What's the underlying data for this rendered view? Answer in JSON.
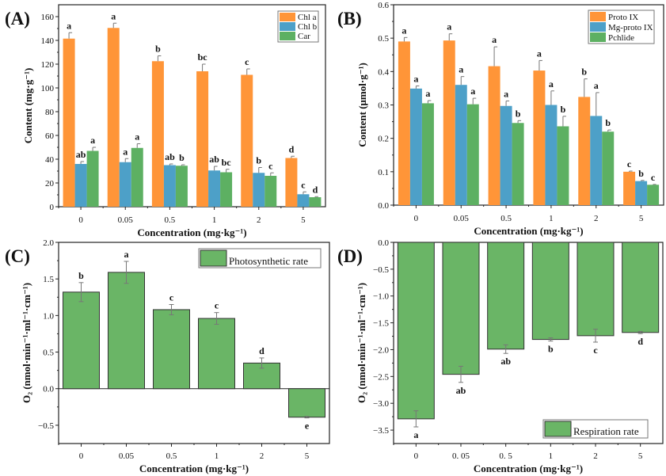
{
  "chart_data": [
    {
      "type": "bar",
      "panel_label": "(A)",
      "xlabel": "Concentration (mg·kg⁻¹)",
      "ylabel": "Content (mg·g⁻¹)",
      "categories": [
        "0",
        "0.05",
        "0.5",
        "1",
        "2",
        "5"
      ],
      "ylim": [
        0,
        170
      ],
      "yticks": [
        0,
        20,
        40,
        60,
        80,
        100,
        120,
        140,
        160
      ],
      "tick_decimals": 0,
      "legend_position": "top-right",
      "series": [
        {
          "name": "Chl a",
          "color": "#FF9538",
          "values": [
            141.5,
            150.5,
            122.5,
            114,
            111,
            41
          ],
          "errors": [
            5,
            4,
            4.5,
            6,
            5,
            1.5
          ],
          "letters": [
            "a",
            "a",
            "b",
            "bc",
            "c",
            "d"
          ]
        },
        {
          "name": "Chl b",
          "color": "#4DA0C8",
          "values": [
            36,
            37.5,
            35,
            30.5,
            28.5,
            10.5
          ],
          "errors": [
            2,
            3,
            1,
            3.5,
            4.5,
            2
          ],
          "letters": [
            "ab",
            "a",
            "ab",
            "ab",
            "b",
            "c"
          ]
        },
        {
          "name": "Car",
          "color": "#5DB062",
          "values": [
            47,
            49.5,
            34.5,
            29,
            26,
            8
          ],
          "errors": [
            3,
            3.5,
            0.8,
            2.5,
            2.5,
            0.5
          ],
          "letters": [
            "a",
            "a",
            "b",
            "bc",
            "c",
            "d"
          ]
        }
      ]
    },
    {
      "type": "bar",
      "panel_label": "(B)",
      "xlabel": "Concentration (mg·kg⁻¹)",
      "ylabel": "Content (μmol·g⁻¹)",
      "categories": [
        "0",
        "0.05",
        "0.5",
        "1",
        "2",
        "5"
      ],
      "ylim": [
        0,
        0.6
      ],
      "yticks": [
        0,
        0.1,
        0.2,
        0.3,
        0.4,
        0.5,
        0.6
      ],
      "tick_decimals": 1,
      "legend_position": "top-right",
      "series": [
        {
          "name": "Proto IX",
          "color": "#FF9538",
          "values": [
            0.49,
            0.493,
            0.416,
            0.403,
            0.324,
            0.1
          ],
          "errors": [
            0.012,
            0.02,
            0.058,
            0.03,
            0.054,
            0.002
          ],
          "letters": [
            "a",
            "a",
            "a",
            "a",
            "b",
            "c"
          ]
        },
        {
          "name": "Mg-proto IX",
          "color": "#4DA0C8",
          "values": [
            0.349,
            0.36,
            0.297,
            0.3,
            0.267,
            0.072
          ],
          "errors": [
            0.008,
            0.025,
            0.015,
            0.042,
            0.07,
            0.002
          ],
          "letters": [
            "a",
            "a",
            "a",
            "a",
            "a",
            "b"
          ]
        },
        {
          "name": "Pchlide",
          "color": "#5DB062",
          "values": [
            0.305,
            0.302,
            0.246,
            0.236,
            0.22,
            0.061
          ],
          "errors": [
            0.008,
            0.018,
            0.007,
            0.03,
            0.005,
            0.001
          ],
          "letters": [
            "a",
            "a",
            "b",
            "b",
            "b",
            "c"
          ]
        }
      ]
    },
    {
      "type": "bar",
      "panel_label": "(C)",
      "xlabel": "Concentration (mg·kg⁻¹)",
      "ylabel": "O₂ (nmol·min⁻¹·ml⁻¹·cm⁻¹)",
      "categories": [
        "0",
        "0.05",
        "0.5",
        "1",
        "2",
        "5"
      ],
      "ylim": [
        -0.75,
        2.0
      ],
      "yticks": [
        -0.5,
        0,
        0.5,
        1.0,
        1.5,
        2.0
      ],
      "tick_decimals": 1,
      "legend_position": "top-right",
      "series": [
        {
          "name": "Photosynthetic rate",
          "color": "#6AB566",
          "values": [
            1.32,
            1.59,
            1.08,
            0.96,
            0.35,
            -0.39
          ],
          "errors": [
            0.13,
            0.15,
            0.07,
            0.08,
            0.07,
            0.01
          ],
          "letters": [
            "b",
            "a",
            "c",
            "c",
            "d",
            "e"
          ]
        }
      ]
    },
    {
      "type": "bar",
      "panel_label": "(D)",
      "xlabel": "Concentration (mg·kg⁻¹)",
      "ylabel": "O₂ (nmol·min⁻¹·ml⁻¹·cm⁻¹)",
      "categories": [
        "0",
        "0. 05",
        "0. 5",
        "1",
        "2",
        "5"
      ],
      "ylim": [
        -3.75,
        0
      ],
      "yticks": [
        -3.5,
        -3.0,
        -2.5,
        -2.0,
        -1.5,
        -1.0,
        -0.5,
        0
      ],
      "tick_decimals": 1,
      "legend_position": "bottom-right",
      "series": [
        {
          "name": "Respiration rate",
          "color": "#6AB566",
          "values": [
            -3.29,
            -2.46,
            -1.99,
            -1.81,
            -1.74,
            -1.68
          ],
          "errors": [
            0.15,
            0.15,
            0.08,
            0.03,
            0.12,
            0.02
          ],
          "letters": [
            "a",
            "ab",
            "ab",
            "b",
            "c",
            "d"
          ]
        }
      ]
    }
  ]
}
